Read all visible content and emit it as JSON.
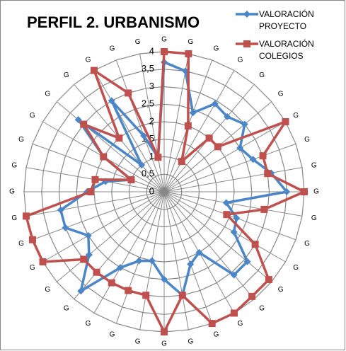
{
  "chart_data": {
    "type": "radar",
    "title": "PERFIL 2. URBANISMO",
    "categories": [
      "G",
      "G",
      "G",
      "G",
      "G",
      "G",
      "G",
      "G",
      "G",
      "G",
      "G",
      "G",
      "G",
      "G",
      "G",
      "G",
      "G",
      "G",
      "G",
      "G",
      "G",
      "G",
      "G",
      "G",
      "G",
      "G",
      "G",
      "G",
      "G",
      "G",
      "G",
      "G",
      "G",
      "G",
      "G",
      "G"
    ],
    "series": [
      {
        "name": "VALORACIÓN PROYECTO",
        "color": "#4a86c8",
        "marker": "diamond",
        "values": [
          3.7,
          3.5,
          2.4,
          2.9,
          2.8,
          3.0,
          2.5,
          2.7,
          3.1,
          3.5,
          1.8,
          2.2,
          2.3,
          3.1,
          3.1,
          2.0,
          2.2,
          3.0,
          2.5,
          2.0,
          2.1,
          2.5,
          3.7,
          2.8,
          2.5,
          3.0,
          3.0,
          2.2,
          1.7,
          1.0,
          2.0,
          3.2,
          1.0,
          3.0,
          1.7,
          1.0
        ]
      },
      {
        "name": "VALORACIÓN COLEGIOS",
        "color": "#c0504d",
        "marker": "square",
        "values": [
          4.0,
          4.0,
          2.0,
          1.0,
          2.0,
          2.0,
          4.0,
          3.0,
          3.0,
          4.0,
          2.9,
          1.9,
          3.0,
          3.9,
          3.9,
          4.0,
          4.0,
          3.0,
          4.0,
          3.0,
          3.0,
          3.0,
          3.0,
          3.0,
          4.0,
          4.0,
          4.0,
          2.1,
          2.0,
          1.0,
          2.0,
          3.0,
          2.0,
          4.0,
          3.0,
          1.0
        ]
      }
    ],
    "rlim": [
      0,
      4
    ],
    "rticks": [
      0,
      {
        "value": 0.5,
        "label": "0,5"
      },
      1,
      {
        "value": 1.5,
        "label": "1,5"
      },
      2,
      {
        "value": 2.5,
        "label": "2,5"
      },
      3,
      {
        "value": 3.5,
        "label": "3,5"
      },
      4
    ],
    "grid": true
  }
}
